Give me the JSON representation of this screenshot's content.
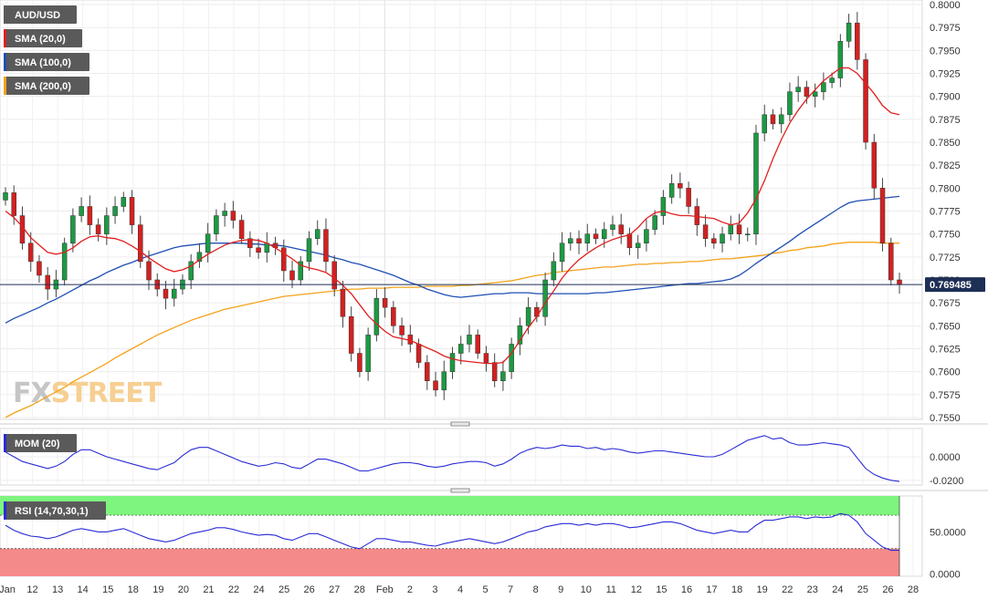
{
  "chart_data": {
    "type": "candlestick",
    "symbol": "AUD/USD",
    "watermark": {
      "part1": "FX",
      "part2": "STREET"
    },
    "legend": [
      {
        "label": "AUD/USD",
        "color": "#5a5a5a"
      },
      {
        "label": "SMA (20,0)",
        "color": "#e02020"
      },
      {
        "label": "SMA (100,0)",
        "color": "#1f4fb4"
      },
      {
        "label": "SMA (200,0)",
        "color": "#f5a21b"
      }
    ],
    "ylim": [
      0.7548,
      0.8005
    ],
    "y_ticks": [
      "0.8000",
      "0.7975",
      "0.7950",
      "0.7925",
      "0.7900",
      "0.7875",
      "0.7850",
      "0.7825",
      "0.7800",
      "0.7775",
      "0.7750",
      "0.7725",
      "0.7700",
      "0.7675",
      "0.7650",
      "0.7625",
      "0.7600",
      "0.7575",
      "0.7550"
    ],
    "last_price": "0.769485",
    "x_labels": [
      "Jan",
      "12",
      "13",
      "14",
      "15",
      "18",
      "19",
      "20",
      "21",
      "22",
      "24",
      "25",
      "26",
      "27",
      "28",
      "Feb",
      "2",
      "3",
      "4",
      "5",
      "7",
      "8",
      "9",
      "10",
      "11",
      "12",
      "15",
      "16",
      "17",
      "18",
      "19",
      "22",
      "23",
      "24",
      "25",
      "26",
      "28"
    ],
    "close": [
      0.7795,
      0.777,
      0.774,
      0.772,
      0.7705,
      0.769,
      0.77,
      0.774,
      0.777,
      0.778,
      0.776,
      0.775,
      0.777,
      0.778,
      0.779,
      0.776,
      0.772,
      0.77,
      0.769,
      0.768,
      0.769,
      0.77,
      0.772,
      0.773,
      0.775,
      0.777,
      0.7775,
      0.7765,
      0.7745,
      0.7735,
      0.773,
      0.774,
      0.7735,
      0.771,
      0.77,
      0.772,
      0.7745,
      0.7755,
      0.772,
      0.769,
      0.766,
      0.762,
      0.76,
      0.764,
      0.768,
      0.767,
      0.765,
      0.764,
      0.763,
      0.761,
      0.759,
      0.758,
      0.76,
      0.762,
      0.763,
      0.764,
      0.762,
      0.761,
      0.759,
      0.76,
      0.763,
      0.765,
      0.767,
      0.766,
      0.77,
      0.772,
      0.774,
      0.7745,
      0.774,
      0.775,
      0.7745,
      0.7755,
      0.776,
      0.775,
      0.7735,
      0.774,
      0.7755,
      0.777,
      0.779,
      0.7805,
      0.78,
      0.778,
      0.776,
      0.7745,
      0.774,
      0.775,
      0.776,
      0.775,
      0.775,
      0.786,
      0.788,
      0.787,
      0.788,
      0.7905,
      0.791,
      0.79,
      0.7905,
      0.7915,
      0.792,
      0.796,
      0.798,
      0.794,
      0.785,
      0.78,
      0.774,
      0.77,
      0.7695
    ],
    "sma20": [
      0.7775,
      0.7768,
      0.7758,
      0.7746,
      0.7738,
      0.773,
      0.7728,
      0.773,
      0.7735,
      0.7742,
      0.7747,
      0.7748,
      0.7746,
      0.7745,
      0.7742,
      0.7737,
      0.7731,
      0.7724,
      0.7718,
      0.7712,
      0.7709,
      0.7711,
      0.7715,
      0.7722,
      0.7728,
      0.7733,
      0.7738,
      0.7741,
      0.7743,
      0.7744,
      0.7743,
      0.774,
      0.7735,
      0.7729,
      0.7723,
      0.7716,
      0.7713,
      0.7711,
      0.7708,
      0.7702,
      0.7694,
      0.7685,
      0.7673,
      0.7661,
      0.7652,
      0.7644,
      0.7638,
      0.7636,
      0.7634,
      0.763,
      0.7626,
      0.7622,
      0.7617,
      0.7614,
      0.7612,
      0.7611,
      0.761,
      0.7609,
      0.7609,
      0.761,
      0.762,
      0.7634,
      0.7648,
      0.766,
      0.7675,
      0.7688,
      0.7702,
      0.7713,
      0.7722,
      0.7729,
      0.7735,
      0.774,
      0.7744,
      0.7747,
      0.7749,
      0.7757,
      0.7767,
      0.7773,
      0.7775,
      0.7772,
      0.777,
      0.777,
      0.7769,
      0.7768,
      0.7767,
      0.7763,
      0.776,
      0.7762,
      0.7773,
      0.7788,
      0.7808,
      0.7832,
      0.7853,
      0.7871,
      0.7885,
      0.7897,
      0.7907,
      0.7917,
      0.7924,
      0.7931,
      0.7931,
      0.7925,
      0.7914,
      0.7903,
      0.789,
      0.7882,
      0.788
    ],
    "sma100": [
      0.7653,
      0.7658,
      0.7662,
      0.7666,
      0.767,
      0.7675,
      0.7679,
      0.7684,
      0.7689,
      0.7694,
      0.7699,
      0.7703,
      0.7708,
      0.7712,
      0.7716,
      0.7719,
      0.7723,
      0.7726,
      0.7729,
      0.7732,
      0.7735,
      0.7737,
      0.7738,
      0.7739,
      0.774,
      0.774,
      0.774,
      0.774,
      0.774,
      0.7739,
      0.7739,
      0.7738,
      0.7738,
      0.7737,
      0.7735,
      0.7733,
      0.7731,
      0.7729,
      0.7727,
      0.7724,
      0.7722,
      0.7719,
      0.7717,
      0.7714,
      0.7711,
      0.7708,
      0.7705,
      0.7701,
      0.7697,
      0.7694,
      0.769,
      0.7687,
      0.7684,
      0.7682,
      0.7681,
      0.7682,
      0.7683,
      0.7684,
      0.7685,
      0.7685,
      0.7686,
      0.7686,
      0.7686,
      0.7685,
      0.7685,
      0.7685,
      0.7685,
      0.7685,
      0.7685,
      0.7685,
      0.7686,
      0.7686,
      0.7687,
      0.7688,
      0.7689,
      0.769,
      0.7691,
      0.7692,
      0.7693,
      0.7694,
      0.7695,
      0.7696,
      0.7696,
      0.7697,
      0.7698,
      0.7699,
      0.7701,
      0.7705,
      0.7711,
      0.7718,
      0.7724,
      0.773,
      0.7736,
      0.7742,
      0.7749,
      0.7755,
      0.7761,
      0.7767,
      0.7773,
      0.7779,
      0.7784,
      0.7786,
      0.7787,
      0.7788,
      0.7789,
      0.779,
      0.7791
    ],
    "sma200": [
      0.755,
      0.7555,
      0.7559,
      0.7563,
      0.7568,
      0.7573,
      0.7578,
      0.7583,
      0.7589,
      0.7594,
      0.7599,
      0.7604,
      0.7609,
      0.7615,
      0.762,
      0.7625,
      0.763,
      0.7635,
      0.764,
      0.7644,
      0.7648,
      0.7652,
      0.7656,
      0.7659,
      0.7662,
      0.7665,
      0.7668,
      0.767,
      0.7672,
      0.7674,
      0.7676,
      0.7678,
      0.768,
      0.7682,
      0.7683,
      0.7684,
      0.7685,
      0.7686,
      0.7687,
      0.7688,
      0.7689,
      0.769,
      0.769,
      0.7691,
      0.7691,
      0.7691,
      0.7692,
      0.7692,
      0.7692,
      0.7692,
      0.7693,
      0.7693,
      0.7693,
      0.7693,
      0.7694,
      0.7694,
      0.7695,
      0.7696,
      0.7697,
      0.7698,
      0.7699,
      0.7701,
      0.7703,
      0.7705,
      0.7706,
      0.7708,
      0.7709,
      0.771,
      0.7711,
      0.7712,
      0.7713,
      0.7714,
      0.7714,
      0.7715,
      0.7716,
      0.7717,
      0.7717,
      0.7718,
      0.7718,
      0.7719,
      0.7719,
      0.772,
      0.772,
      0.7721,
      0.7722,
      0.7723,
      0.7723,
      0.7724,
      0.7725,
      0.7726,
      0.7727,
      0.7729,
      0.773,
      0.7732,
      0.7733,
      0.7735,
      0.7736,
      0.7737,
      0.7739,
      0.774,
      0.7741,
      0.7741,
      0.7741,
      0.7741,
      0.774,
      0.774,
      0.774
    ],
    "momentum": {
      "label": "MOM (20)",
      "ylim": [
        -0.024,
        0.024
      ],
      "y_ticks": [
        "0.0000",
        "-0.0200"
      ],
      "values": [
        0.004,
        0.0,
        -0.004,
        -0.006,
        -0.008,
        -0.01,
        -0.008,
        -0.004,
        0.002,
        0.006,
        0.006,
        0.003,
        0.0,
        -0.002,
        -0.004,
        -0.006,
        -0.008,
        -0.01,
        -0.011,
        -0.008,
        -0.005,
        0.001,
        0.006,
        0.008,
        0.008,
        0.005,
        0.002,
        -0.001,
        -0.004,
        -0.006,
        -0.008,
        -0.007,
        -0.005,
        -0.006,
        -0.009,
        -0.01,
        -0.006,
        -0.002,
        -0.002,
        -0.004,
        -0.006,
        -0.009,
        -0.012,
        -0.012,
        -0.01,
        -0.008,
        -0.006,
        -0.005,
        -0.005,
        -0.006,
        -0.008,
        -0.009,
        -0.008,
        -0.006,
        -0.005,
        -0.004,
        -0.004,
        -0.005,
        -0.008,
        -0.006,
        -0.002,
        0.003,
        0.006,
        0.008,
        0.007,
        0.008,
        0.01,
        0.009,
        0.009,
        0.007,
        0.008,
        0.006,
        0.007,
        0.006,
        0.004,
        0.003,
        0.004,
        0.005,
        0.005,
        0.004,
        0.003,
        0.002,
        0.001,
        0.0,
        0.0,
        0.002,
        0.006,
        0.01,
        0.014,
        0.016,
        0.018,
        0.015,
        0.016,
        0.012,
        0.01,
        0.01,
        0.011,
        0.012,
        0.011,
        0.01,
        0.008,
        -0.001,
        -0.01,
        -0.015,
        -0.018,
        -0.02,
        -0.021
      ]
    },
    "rsi": {
      "label": "RSI (14,70,30,1)",
      "ylim": [
        -3,
        93
      ],
      "upper": 70,
      "lower": 30,
      "y_ticks": [
        "50.0000",
        "0.0000"
      ],
      "values": [
        58,
        52,
        48,
        45,
        44,
        42,
        44,
        48,
        52,
        54,
        52,
        50,
        50,
        52,
        54,
        50,
        46,
        42,
        40,
        38,
        40,
        44,
        48,
        50,
        52,
        55,
        55,
        53,
        50,
        48,
        46,
        47,
        46,
        42,
        40,
        44,
        48,
        48,
        44,
        40,
        36,
        32,
        30,
        36,
        42,
        42,
        40,
        38,
        38,
        36,
        34,
        33,
        36,
        38,
        40,
        42,
        40,
        38,
        36,
        38,
        42,
        46,
        50,
        52,
        56,
        58,
        60,
        60,
        58,
        60,
        58,
        60,
        60,
        58,
        55,
        56,
        58,
        60,
        62,
        62,
        60,
        56,
        52,
        50,
        48,
        50,
        52,
        50,
        50,
        58,
        64,
        64,
        66,
        68,
        68,
        66,
        68,
        67,
        68,
        72,
        70,
        62,
        48,
        40,
        32,
        28,
        28
      ]
    }
  }
}
